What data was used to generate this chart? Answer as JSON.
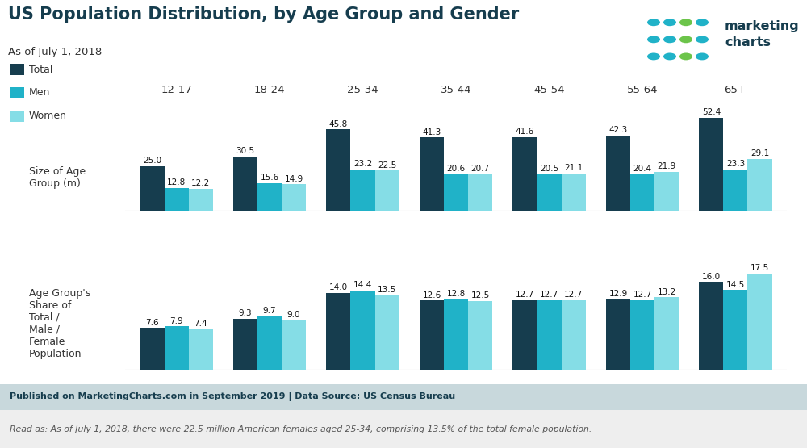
{
  "title": "US Population Distribution, by Age Group and Gender",
  "subtitle": "As of July 1, 2018",
  "age_groups": [
    "12-17",
    "18-24",
    "25-34",
    "35-44",
    "45-54",
    "55-64",
    "65+"
  ],
  "colors": {
    "total": "#163d4e",
    "men": "#20b2c8",
    "women": "#85dde6"
  },
  "top_chart": {
    "label": "Size of Age\nGroup (m)",
    "total": [
      25.0,
      30.5,
      45.8,
      41.3,
      41.6,
      42.3,
      52.4
    ],
    "men": [
      12.8,
      15.6,
      23.2,
      20.6,
      20.5,
      20.4,
      23.3
    ],
    "women": [
      12.2,
      14.9,
      22.5,
      20.7,
      21.1,
      21.9,
      29.1
    ]
  },
  "bottom_chart": {
    "label": "Age Group's\nShare of\nTotal /\nMale /\nFemale\nPopulation",
    "total": [
      7.6,
      9.3,
      14.0,
      12.6,
      12.7,
      12.9,
      16.0
    ],
    "men": [
      7.9,
      9.7,
      14.4,
      12.8,
      12.7,
      12.7,
      14.5
    ],
    "women": [
      7.4,
      9.0,
      13.5,
      12.5,
      12.7,
      13.2,
      17.5
    ]
  },
  "legend": [
    "Total",
    "Men",
    "Women"
  ],
  "footer_bold": "Published on MarketingCharts.com in September 2019 | Data Source: US Census Bureau",
  "footer_italic": "Read as: As of July 1, 2018, there were 22.5 million American females aged 25-34, comprising 13.5% of the total female population.",
  "background_color": "#ffffff",
  "footer_bg": "#c8d8dc",
  "footer_italic_bg": "#eeeeee",
  "logo_dot_colors": [
    [
      "#20b2c8",
      "#20b2c8",
      "#6cc44a",
      "#20b2c8"
    ],
    [
      "#20b2c8",
      "#20b2c8",
      "#6cc44a",
      "#20b2c8"
    ],
    [
      "#20b2c8",
      "#20b2c8",
      "#6cc44a",
      "#20b2c8"
    ]
  ],
  "logo_text": "marketing\ncharts",
  "logo_text_color": "#163d4e"
}
